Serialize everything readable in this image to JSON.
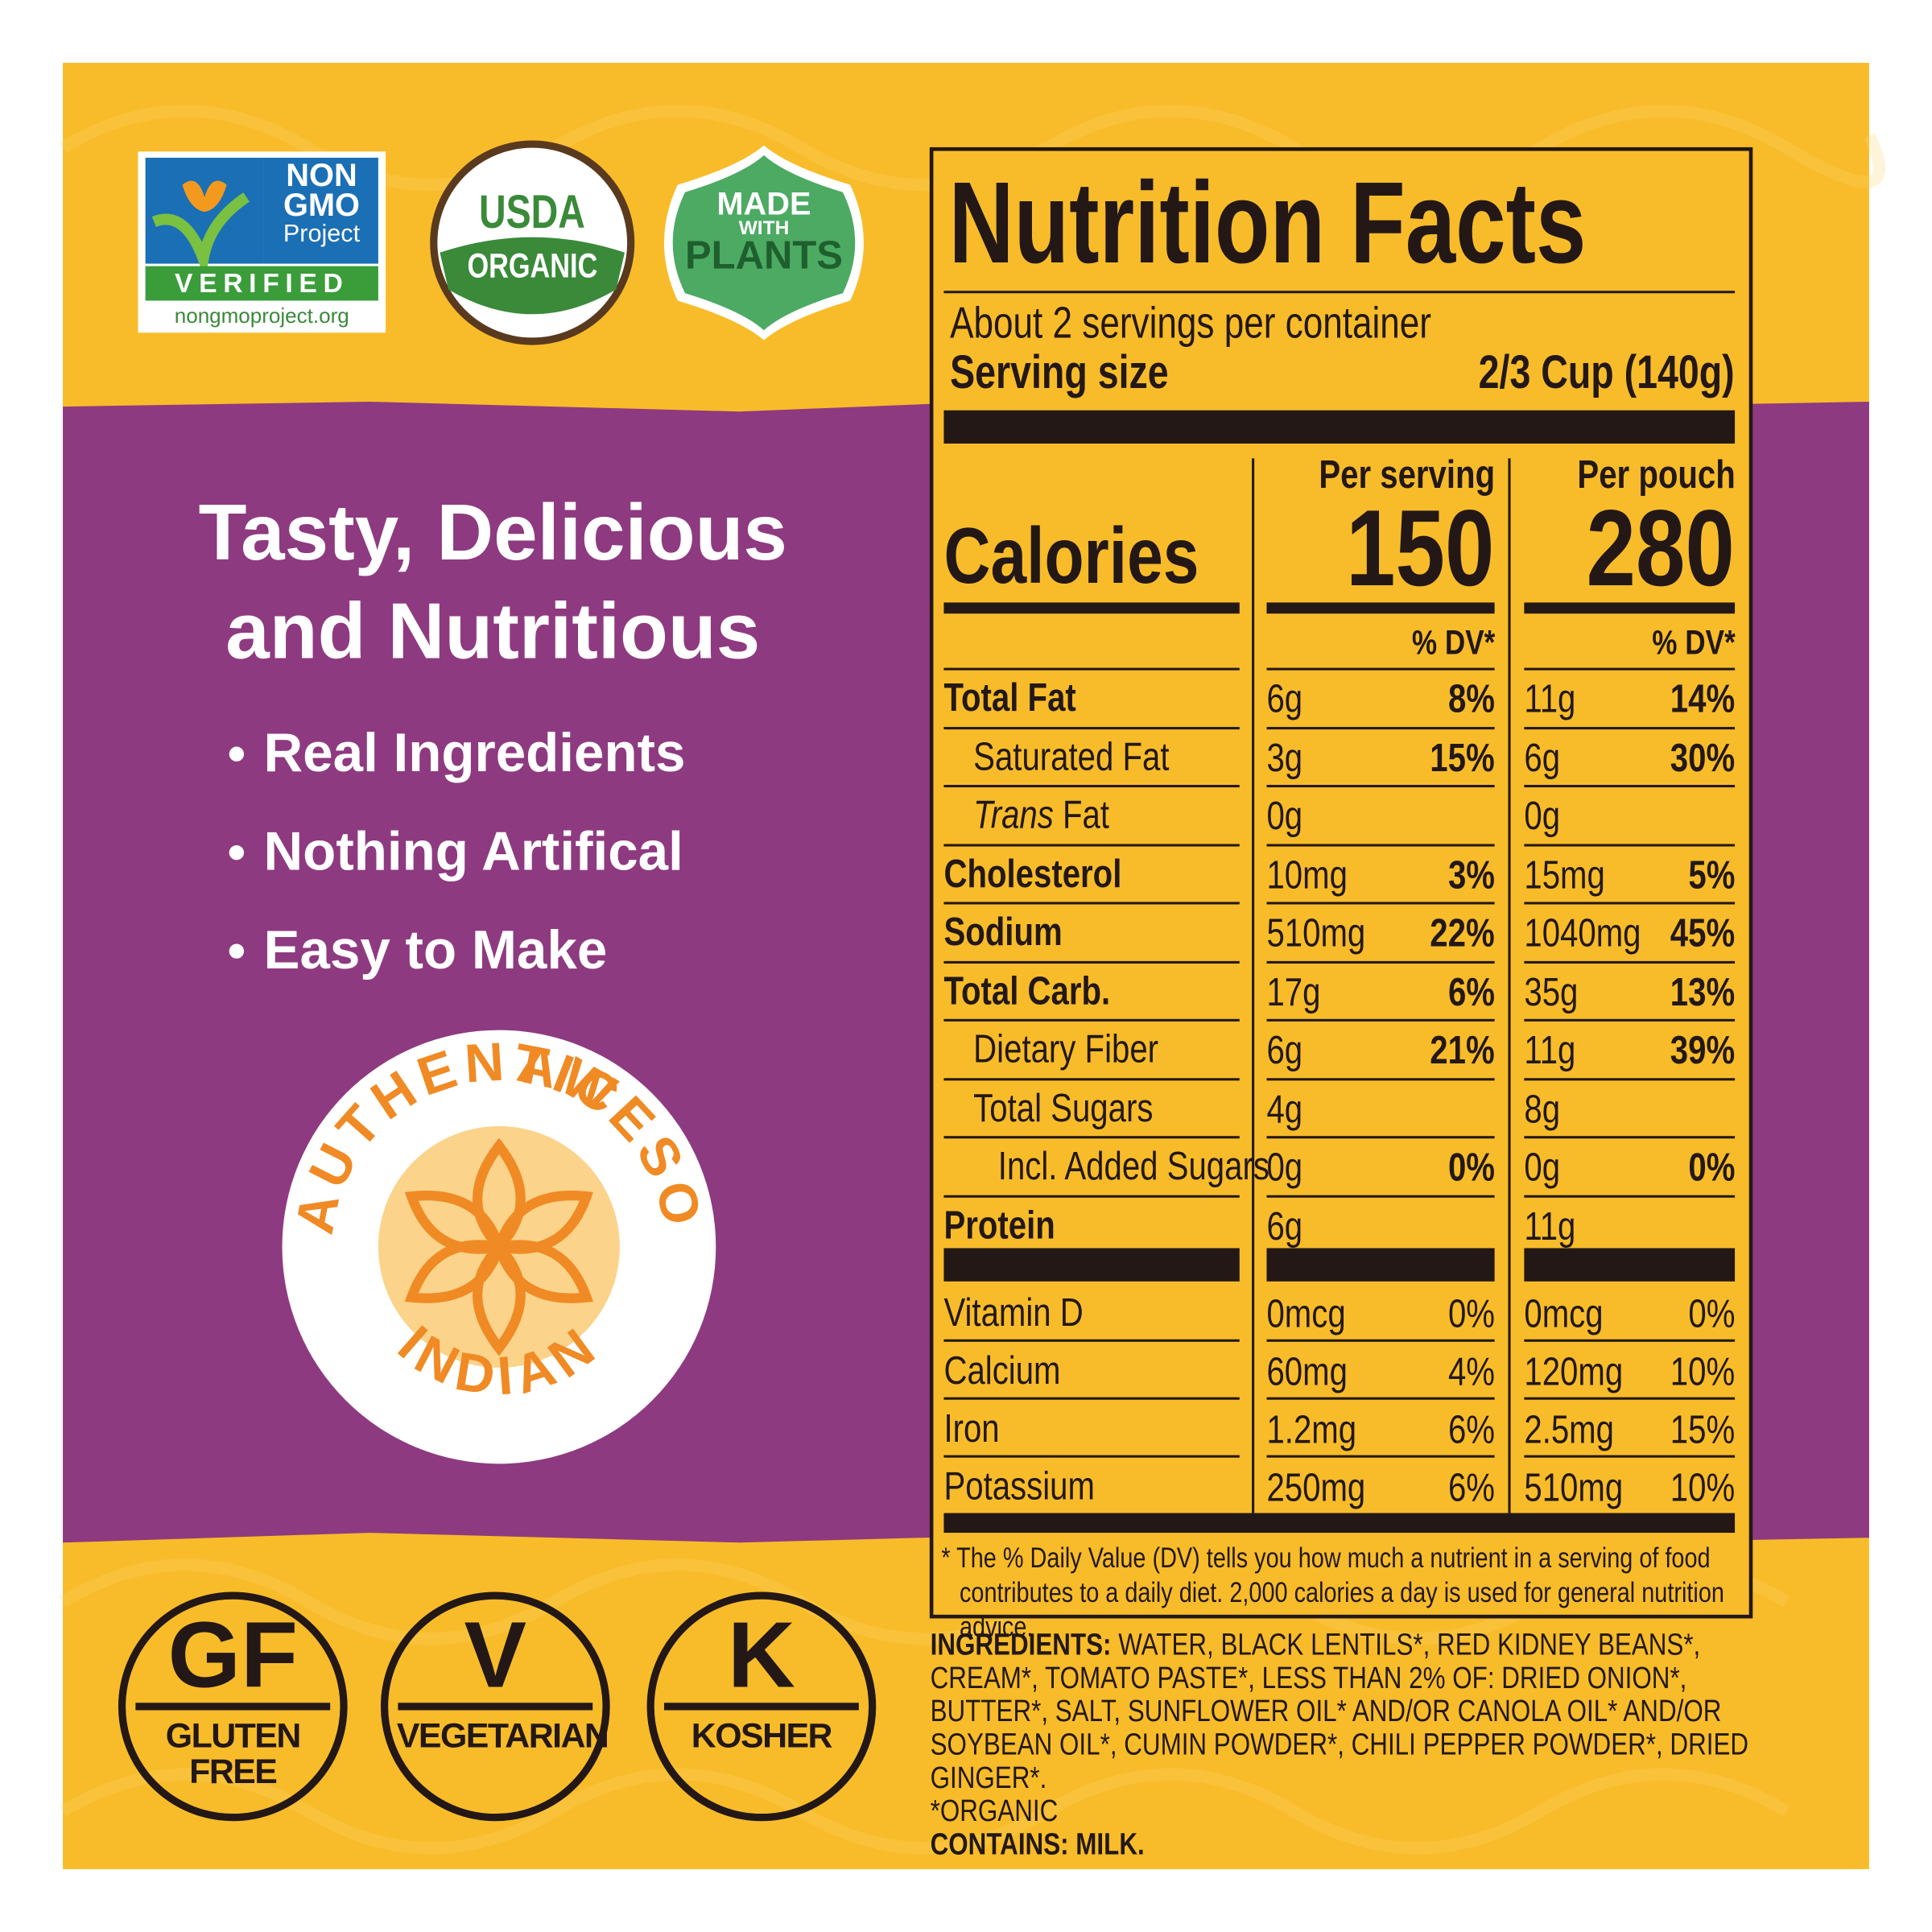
{
  "badges": {
    "non_gmo": {
      "line1": "NON",
      "line2": "GMO",
      "line3": "Project",
      "line4": "VERIFIED",
      "url": "nongmoproject.org"
    },
    "usda": {
      "line1": "USDA",
      "line2": "ORGANIC"
    },
    "plants": {
      "line1": "MADE",
      "line2": "WITH",
      "line3": "PLANTS"
    }
  },
  "headline": [
    "Tasty, Delicious",
    "and Nutritious"
  ],
  "bullets": [
    "Real Ingredients",
    "Nothing Artifical",
    "Easy to Make"
  ],
  "seal": {
    "word1": "AUTHENTIC",
    "word2": "AWESOME",
    "word3": "INDIAN"
  },
  "diet_badges": [
    {
      "symbol": "GF",
      "label": "GLUTEN FREE"
    },
    {
      "symbol": "V",
      "label": "VEGETARIAN"
    },
    {
      "symbol": "K",
      "label": "KOSHER"
    }
  ],
  "nutrition": {
    "title": "Nutrition Facts",
    "servings": "About 2 servings per container",
    "serving_size_label": "Serving size",
    "serving_size_value": "2/3 Cup (140g)",
    "col_headers": [
      "Per serving",
      "Per pouch"
    ],
    "calories_label": "Calories",
    "calories": [
      "150",
      "280"
    ],
    "dv_header": "% DV*",
    "rows": [
      {
        "name": "Total Fat",
        "bold": true,
        "indent": 0,
        "serving": [
          "6g",
          "8%"
        ],
        "pouch": [
          "11g",
          "14%"
        ]
      },
      {
        "name": "Saturated Fat",
        "bold": false,
        "indent": 1,
        "serving": [
          "3g",
          "15%"
        ],
        "pouch": [
          "6g",
          "30%"
        ]
      },
      {
        "name_italic": "Trans",
        "name": "Fat",
        "bold": false,
        "indent": 1,
        "serving": [
          "0g",
          null
        ],
        "pouch": [
          "0g",
          null
        ]
      },
      {
        "name": "Cholesterol",
        "bold": true,
        "indent": 0,
        "serving": [
          "10mg",
          "3%"
        ],
        "pouch": [
          "15mg",
          "5%"
        ]
      },
      {
        "name": "Sodium",
        "bold": true,
        "indent": 0,
        "serving": [
          "510mg",
          "22%"
        ],
        "pouch": [
          "1040mg",
          "45%"
        ]
      },
      {
        "name": "Total Carb.",
        "bold": true,
        "indent": 0,
        "serving": [
          "17g",
          "6%"
        ],
        "pouch": [
          "35g",
          "13%"
        ]
      },
      {
        "name": "Dietary Fiber",
        "bold": false,
        "indent": 1,
        "serving": [
          "6g",
          "21%"
        ],
        "pouch": [
          "11g",
          "39%"
        ]
      },
      {
        "name": "Total Sugars",
        "bold": false,
        "indent": 1,
        "serving": [
          "4g",
          null
        ],
        "pouch": [
          "8g",
          null
        ]
      },
      {
        "name": "Incl. Added Sugars",
        "bold": false,
        "indent": 2,
        "serving": [
          "0g",
          "0%"
        ],
        "pouch": [
          "0g",
          "0%"
        ]
      },
      {
        "name": "Protein",
        "bold": true,
        "indent": 0,
        "serving": [
          "6g",
          null
        ],
        "pouch": [
          "11g",
          null
        ]
      }
    ],
    "vitamins": [
      {
        "name": "Vitamin D",
        "serving": [
          "0mcg",
          "0%"
        ],
        "pouch": [
          "0mcg",
          "0%"
        ]
      },
      {
        "name": "Calcium",
        "serving": [
          "60mg",
          "4%"
        ],
        "pouch": [
          "120mg",
          "10%"
        ]
      },
      {
        "name": "Iron",
        "serving": [
          "1.2mg",
          "6%"
        ],
        "pouch": [
          "2.5mg",
          "15%"
        ]
      },
      {
        "name": "Potassium",
        "serving": [
          "250mg",
          "6%"
        ],
        "pouch": [
          "510mg",
          "10%"
        ]
      }
    ],
    "footnote": "* The % Daily Value (DV) tells you how much a nutrient in a serving of food contributes to a daily diet. 2,000 calories a day is used for general nutrition advice."
  },
  "ingredients": {
    "label": "INGREDIENTS:",
    "text": "WATER, BLACK LENTILS*, RED KIDNEY BEANS*, CREAM*, TOMATO PASTE*, LESS THAN 2% OF: DRIED ONION*, BUTTER*, SALT, SUNFLOWER OIL* AND/OR CANOLA OIL* AND/OR SOYBEAN OIL*, CUMIN POWDER*, CHILI PEPPER POWDER*, DRIED GINGER*.",
    "organic_note": "*ORGANIC",
    "contains": "CONTAINS: MILK."
  }
}
